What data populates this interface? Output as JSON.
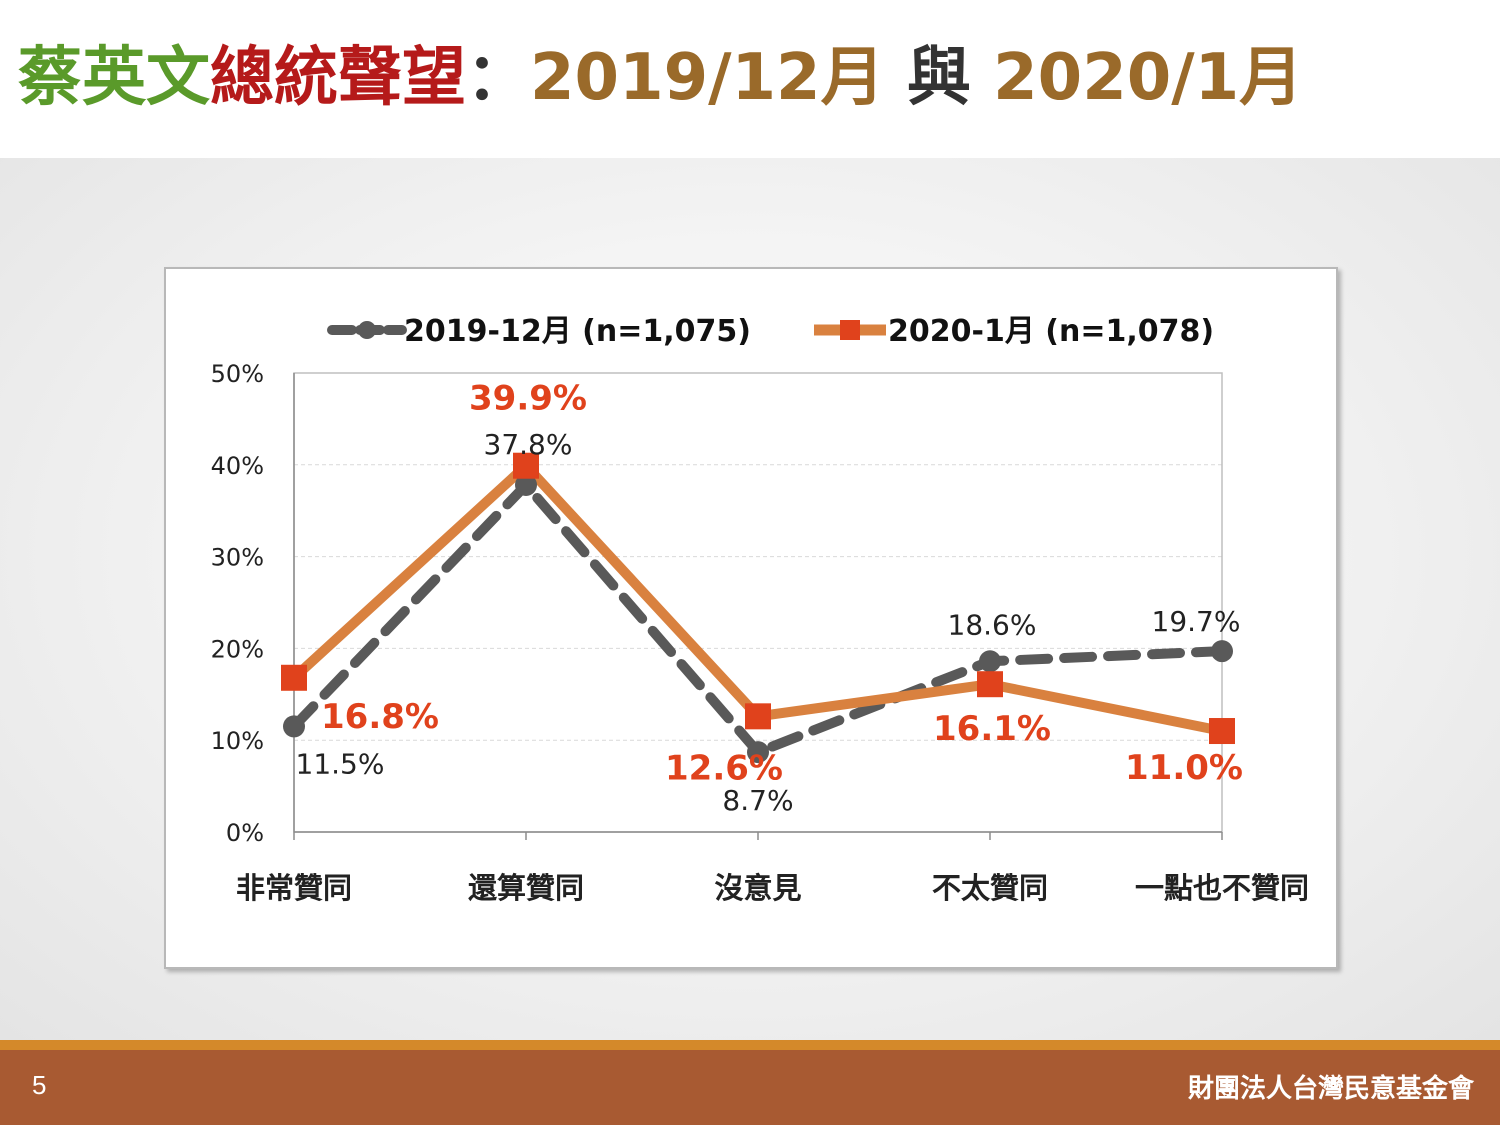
{
  "title": {
    "part1": "蔡英文",
    "part2": "總統聲望",
    "sep": "：",
    "part3": "2019/12月",
    "part4": " 與 ",
    "part5": "2020/1月"
  },
  "footer": {
    "page_number": "5",
    "organization": "財團法人台灣民意基金會"
  },
  "colors": {
    "series_2019": "#595959",
    "series_2020_line": "#d9813f",
    "series_2020_marker": "#e0421c",
    "label_2020": "#e0421c",
    "title_green": "#5a9a2a",
    "title_red": "#b51a1a",
    "title_brown": "#9a6a2a",
    "footer": "#a85a32"
  },
  "chart_data": {
    "type": "line",
    "categories": [
      "非常贊同",
      "還算贊同",
      "沒意見",
      "不太贊同",
      "一點也不贊同"
    ],
    "series": [
      {
        "name": "2019-12月  (n=1,075)",
        "values": [
          11.5,
          37.8,
          8.7,
          18.6,
          19.7
        ],
        "labels": [
          "11.5%",
          "37.8%",
          "8.7%",
          "18.6%",
          "19.7%"
        ]
      },
      {
        "name": "2020-1月  (n=1,078)",
        "values": [
          16.8,
          39.9,
          12.6,
          16.1,
          11.0
        ],
        "labels": [
          "16.8%",
          "39.9%",
          "12.6%",
          "16.1%",
          "11.0%"
        ]
      }
    ],
    "y_ticks": [
      "0%",
      "10%",
      "20%",
      "30%",
      "40%",
      "50%"
    ],
    "ylim": [
      0,
      50
    ],
    "grid": true,
    "legend": "top"
  }
}
